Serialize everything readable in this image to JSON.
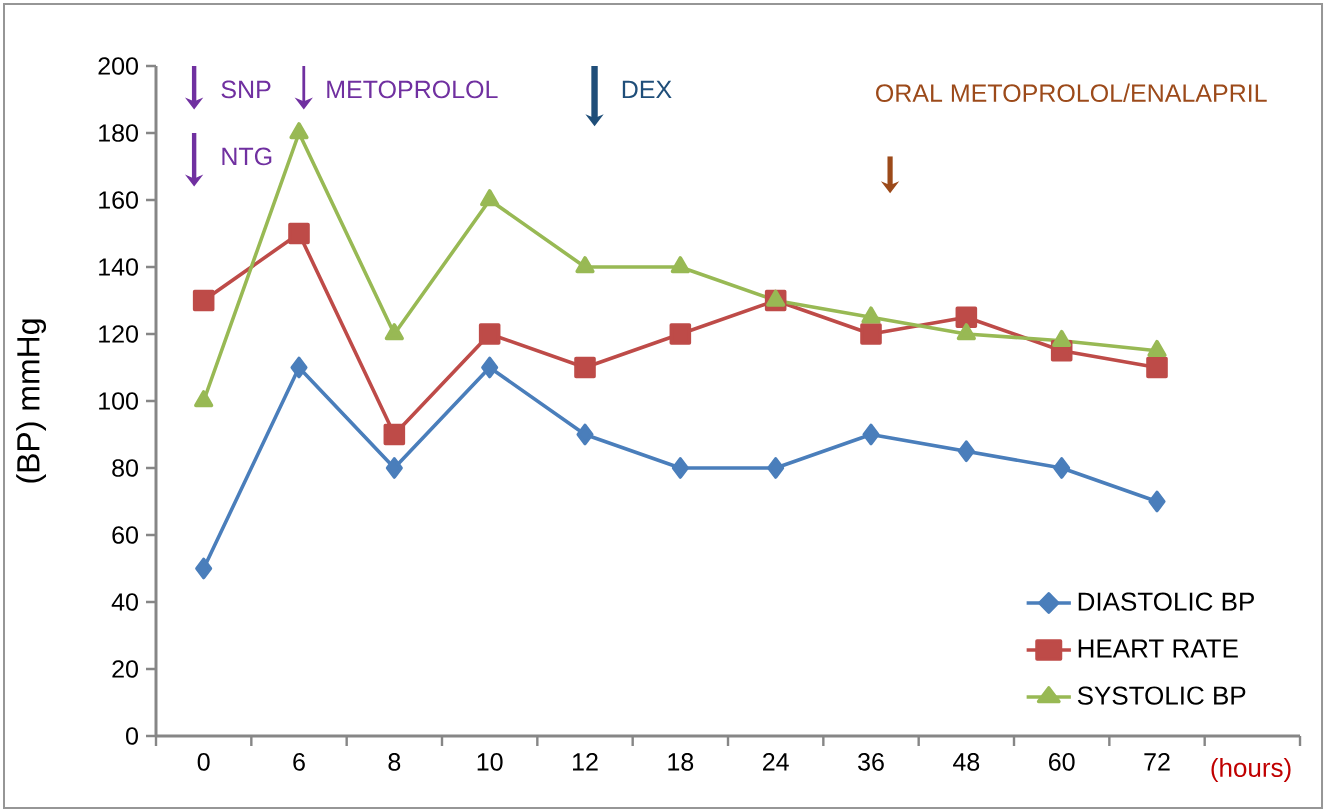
{
  "chart_data": {
    "type": "line",
    "ylabel": "(BP) mmHg",
    "xlabel": "(hours)",
    "categories": [
      "0",
      "6",
      "8",
      "10",
      "12",
      "18",
      "24",
      "36",
      "48",
      "60",
      "72"
    ],
    "series": [
      {
        "name": "DIASTOLIC BP",
        "color": "#4a7ebb",
        "marker": "diamond",
        "values": [
          50,
          110,
          80,
          110,
          90,
          80,
          80,
          90,
          85,
          80,
          70
        ]
      },
      {
        "name": "HEART RATE",
        "color": "#be4b48",
        "marker": "square",
        "values": [
          130,
          150,
          90,
          120,
          110,
          120,
          130,
          120,
          125,
          115,
          110
        ]
      },
      {
        "name": "SYSTOLIC BP",
        "color": "#98b954",
        "marker": "triangle",
        "values": [
          100,
          180,
          120,
          160,
          140,
          140,
          130,
          125,
          120,
          118,
          115
        ]
      }
    ],
    "ylim": [
      0,
      200
    ],
    "yticks": [
      0,
      20,
      40,
      60,
      80,
      100,
      120,
      140,
      160,
      180,
      200
    ],
    "legend": "bottom right",
    "grid": false,
    "line_style": "solid",
    "annotations": [
      "SNP",
      "NTG",
      "METOPROLOL",
      "DEX",
      "ORAL METOPROLOL/ENALAPRIL"
    ]
  }
}
